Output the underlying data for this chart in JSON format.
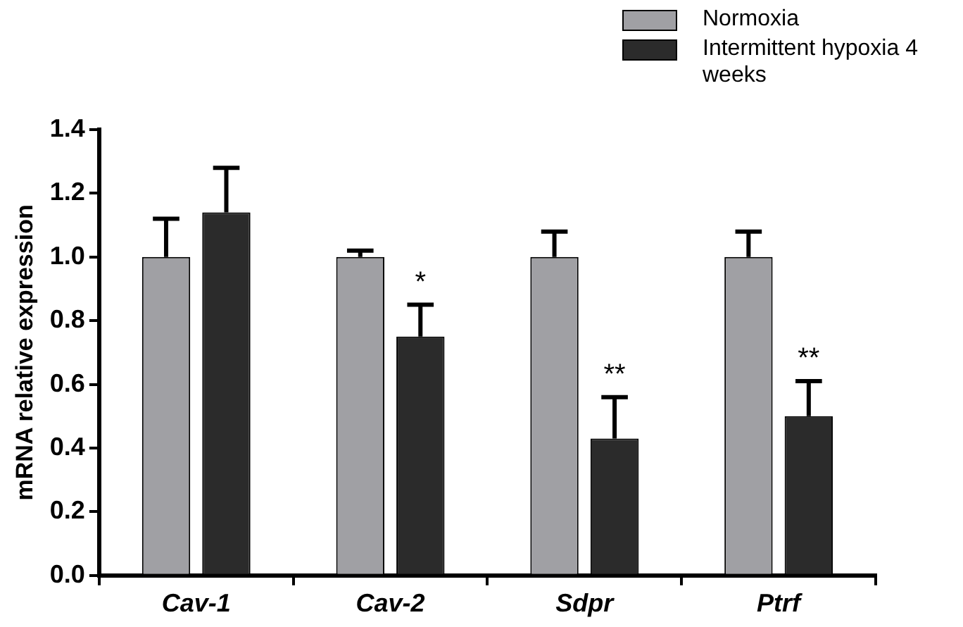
{
  "chart_data": {
    "type": "bar",
    "ylabel": "mRNA relative expression",
    "categories": [
      "Cav-1",
      "Cav-2",
      "Sdpr",
      "Ptrf"
    ],
    "series": [
      {
        "name": "Normoxia",
        "color": "#a0a0a4",
        "values": [
          1.0,
          1.0,
          1.0,
          1.0
        ],
        "errors": [
          [
            1.0,
            1.12
          ],
          [
            1.0,
            1.02
          ],
          [
            1.0,
            1.08
          ],
          [
            1.0,
            1.08
          ]
        ]
      },
      {
        "name": "Intermittent hypoxia 4 weeks",
        "color": "#2b2b2b",
        "values": [
          1.14,
          0.75,
          0.43,
          0.5
        ],
        "errors": [
          [
            1.14,
            1.28
          ],
          [
            0.75,
            0.85
          ],
          [
            0.43,
            0.56
          ],
          [
            0.5,
            0.61
          ]
        ]
      }
    ],
    "ylim": [
      0,
      1.4
    ],
    "yticks": [
      {
        "value": 0,
        "label": "0.0"
      },
      0.2,
      0.4,
      0.6,
      0.8,
      {
        "value": 1,
        "label": "1.0"
      },
      1.2,
      1.4
    ],
    "annotations": [
      "*",
      "**",
      "**"
    ],
    "grid": false,
    "legend": "top right"
  }
}
